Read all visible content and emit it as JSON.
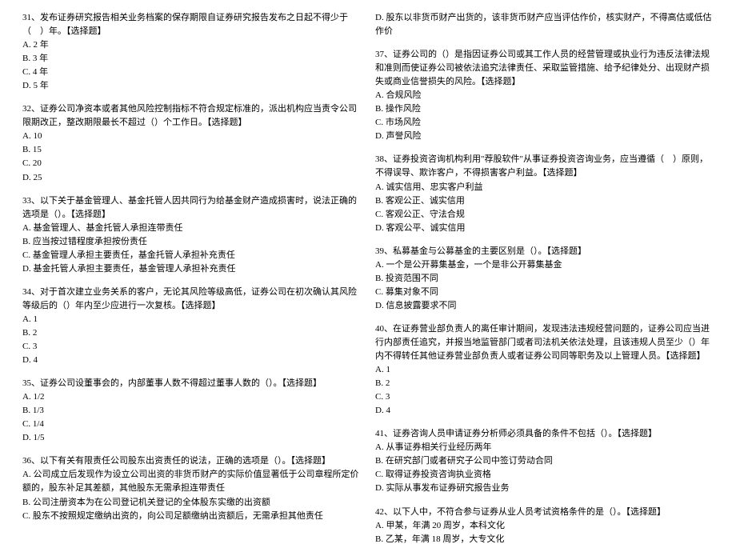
{
  "left": [
    {
      "stem": "31、发布证券研究报告相关业务档案的保存期限自证券研究报告发布之日起不得少于（　）年。【选择题】",
      "opts": [
        "A. 2 年",
        "B. 3 年",
        "C. 4 年",
        "D. 5 年"
      ]
    },
    {
      "stem": "32、证券公司净资本或者其他风险控制指标不符合规定标准的，派出机构应当责令公司限期改正，整改期限最长不超过（）个工作日。【选择题】",
      "opts": [
        "A. 10",
        "B. 15",
        "C. 20",
        "D. 25"
      ]
    },
    {
      "stem": "33、以下关于基金管理人、基金托管人因共同行为给基金财产造成损害时，说法正确的选项是（）。【选择题】",
      "opts": [
        "A. 基金管理人、基金托管人承担连带责任",
        "B. 应当按过错程度承担按份责任",
        "C. 基金管理人承担主要责任，基金托管人承担补充责任",
        "D. 基金托管人承担主要责任，基金管理人承担补充责任"
      ]
    },
    {
      "stem": "34、对于首次建立业务关系的客户，无论其风险等级高低，证券公司在初次确认其风险等级后的（）年内至少应进行一次复核。【选择题】",
      "opts": [
        "A. 1",
        "B. 2",
        "C. 3",
        "D. 4"
      ]
    },
    {
      "stem": "35、证券公司设董事会的，内部董事人数不得超过董事人数的（）。【选择题】",
      "opts": [
        "A. 1/2",
        "B. 1/3",
        "C. 1/4",
        "D. 1/5"
      ]
    },
    {
      "stem": "36、以下有关有限责任公司股东出资责任的说法，正确的选项是（）。【选择题】",
      "opts": [
        "A. 公司成立后发现作为设立公司出资的非货币财产的实际价值显著低于公司章程所定价额的，股东补足其差额，其他股东无需承担连带责任",
        "B. 公司注册资本为在公司登记机关登记的全体股东实缴的出资额",
        "C. 股东不按照规定缴纳出资的，向公司足额缴纳出资额后，无需承担其他责任"
      ]
    }
  ],
  "right": [
    {
      "stem": "",
      "opts": [
        "D. 股东以非货币财产出货的，该非货币财产应当评估作价，核实财产，不得高估或低估作价"
      ]
    },
    {
      "stem": "37、证券公司的（）是指因证券公司或其工作人员的经营管理或执业行为违反法律法规和准则而使证券公司被依法追究法律责任、采取监管措施、给予纪律处分、出现财产损失或商业信誉损失的风险。【选择题】",
      "opts": [
        "A. 合规风险",
        "B. 操作风险",
        "C. 市场风险",
        "D. 声誉风险"
      ]
    },
    {
      "stem": "38、证券投资咨询机构利用\"荐股软件\"从事证券投资咨询业务，应当遵循（　）原则，不得误导、欺诈客户，不得损害客户利益。【选择题】",
      "opts": [
        "A. 诚实信用、忠实客户利益",
        "B. 客观公正、诚实信用",
        "C. 客观公正、守法合规",
        "D. 客观公平、诚实信用"
      ]
    },
    {
      "stem": "39、私募基金与公募基金的主要区别是（）。【选择题】",
      "opts": [
        "A. 一个是公开募集基金，一个是非公开募集基金",
        "B. 投资范围不同",
        "C. 募集对象不同",
        "D. 信息披露要求不同"
      ]
    },
    {
      "stem": "40、在证券营业部负责人的离任审计期间，发现违法违规经营问题的，证券公司应当进行内部责任追究，并报当地监管部门或者司法机关依法处理，且该违规人员至少（）年内不得转任其他证券营业部负责人或者证券公司同等职务及以上管理人员。【选择题】",
      "opts": [
        "A. 1",
        "B. 2",
        "C. 3",
        "D. 4"
      ]
    },
    {
      "stem": "41、证券咨询人员申请证券分析师必须具备的条件不包括（）。【选择题】",
      "opts": [
        "A. 从事证券相关行业经历两年",
        "B. 在研究部门或者研究子公司中签订劳动合同",
        "C. 取得证券投资咨询执业资格",
        "D. 实际从事发布证券研究报告业务"
      ]
    },
    {
      "stem": "42、以下人中，不符合参与证券从业人员考试资格条件的是（）。【选择题】",
      "opts": [
        "A. 甲某，年满 20 周岁，本科文化",
        "B. 乙某，年满 18 周岁，大专文化"
      ]
    }
  ]
}
